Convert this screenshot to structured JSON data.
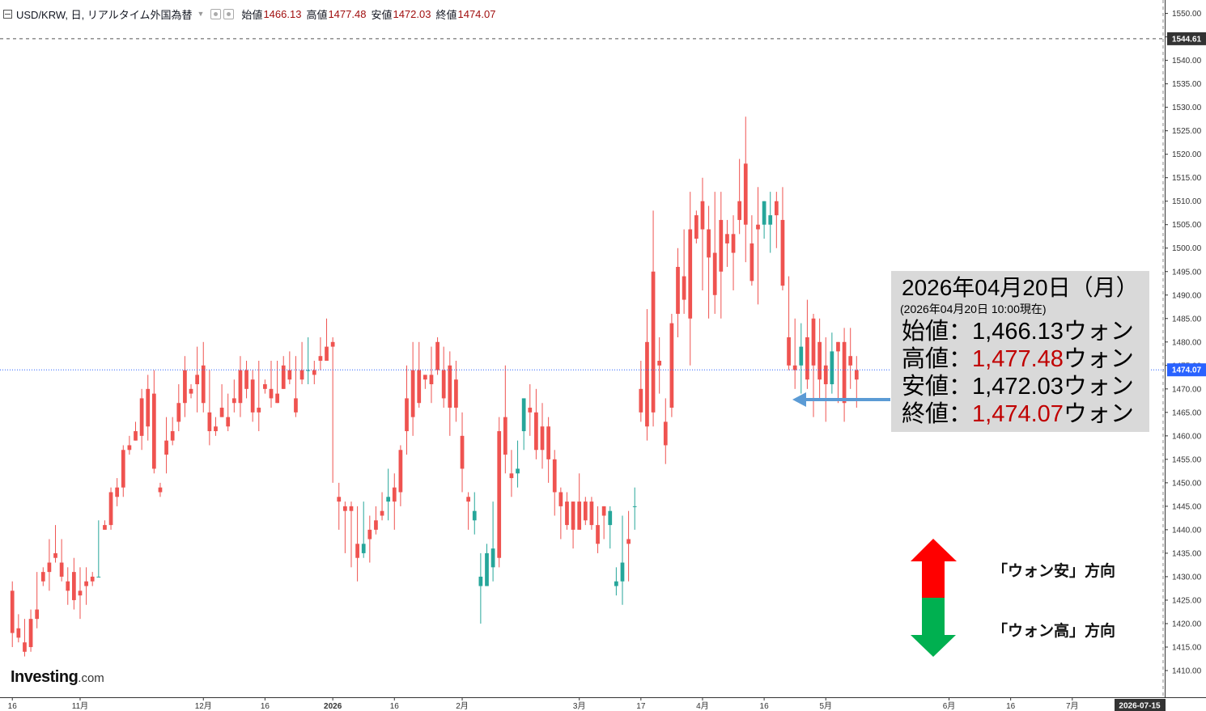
{
  "header": {
    "symbol": "USD/KRW, 日, リアルタイム外国為替",
    "open_label": "始値",
    "open_value": "1466.13",
    "high_label": "高値",
    "high_value": "1477.48",
    "low_label": "安値",
    "low_value": "1472.03",
    "close_label": "終値",
    "close_value": "1474.07"
  },
  "logo": {
    "brand": "Investing",
    "suffix": ".com"
  },
  "infobox": {
    "date": "2026年04月20日（月）",
    "as_of": "(2026年04月20日 10:00現在)",
    "rows": [
      {
        "label": "始値：",
        "value": "1,466.13",
        "unit": "ウォン",
        "highlight": false
      },
      {
        "label": "高値：",
        "value": "1,477.48",
        "unit": "ウォン",
        "highlight": true
      },
      {
        "label": "安値：",
        "value": "1,472.03",
        "unit": "ウォン",
        "highlight": false
      },
      {
        "label": "終値：",
        "value": "1,474.07",
        "unit": "ウォン",
        "highlight": true
      }
    ]
  },
  "legend_arrows": {
    "up_label": "「ウォン安」方向",
    "down_label": "「ウォン高」方向",
    "up_color": "#ff0000",
    "down_color": "#00b050"
  },
  "colors": {
    "up": "#26a69a",
    "down": "#ef5350",
    "accent": "#2962ff",
    "highlight_text": "#c00000"
  },
  "chart_data": {
    "type": "candlestick",
    "y_axis": {
      "min": 1405,
      "max": 1552,
      "step": 5,
      "position": "right",
      "ticks": [
        "1410.00",
        "1415.00",
        "1420.00",
        "1425.00",
        "1430.00",
        "1435.00",
        "1440.00",
        "1445.00",
        "1450.00",
        "1455.00",
        "1460.00",
        "1465.00",
        "1470.00",
        "1475.00",
        "1480.00",
        "1485.00",
        "1490.00",
        "1495.00",
        "1500.00",
        "1505.00",
        "1510.00",
        "1515.00",
        "1520.00",
        "1525.00",
        "1530.00",
        "1535.00",
        "1540.00",
        "1545.00",
        "1550.00"
      ]
    },
    "x_axis": {
      "slot_range": [
        -2,
        187
      ],
      "labels": [
        {
          "slot": 0,
          "text": "16"
        },
        {
          "slot": 11,
          "text": "11月"
        },
        {
          "slot": 31,
          "text": "12月"
        },
        {
          "slot": 41,
          "text": "16"
        },
        {
          "slot": 52,
          "text": "2026"
        },
        {
          "slot": 62,
          "text": "16"
        },
        {
          "slot": 73,
          "text": "2月"
        },
        {
          "slot": 92,
          "text": "3月"
        },
        {
          "slot": 102,
          "text": "17"
        },
        {
          "slot": 112,
          "text": "4月"
        },
        {
          "slot": 122,
          "text": "16"
        },
        {
          "slot": 132,
          "text": "5月"
        },
        {
          "slot": 152,
          "text": "6月"
        },
        {
          "slot": 162,
          "text": "16"
        },
        {
          "slot": 172,
          "text": "7月"
        }
      ],
      "badge": "2026-07-15"
    },
    "current_price": 1474.07,
    "current_price_label": "1474.07",
    "max_price_label": "1544.61",
    "max_price": 1544.61,
    "candles": [
      [
        1427,
        1429,
        1418,
        1415
      ],
      [
        1419,
        1422,
        1417,
        1416
      ],
      [
        1416,
        1421,
        1414,
        1413
      ],
      [
        1421,
        1423,
        1415,
        1414
      ],
      [
        1423,
        1431,
        1421,
        1419
      ],
      [
        1431,
        1432,
        1429,
        1428
      ],
      [
        1433,
        1438,
        1431,
        1427
      ],
      [
        1435,
        1441,
        1434,
        1433
      ],
      [
        1433,
        1438,
        1430,
        1429
      ],
      [
        1429,
        1432,
        1427,
        1424
      ],
      [
        1431,
        1434,
        1425,
        1423
      ],
      [
        1427,
        1432,
        1426,
        1421
      ],
      [
        1429,
        1432,
        1428,
        1424
      ],
      [
        1430,
        1431,
        1429,
        1428
      ],
      [
        1430,
        1442,
        1430,
        1431
      ],
      [
        1441,
        1442,
        1440,
        1440
      ],
      [
        1448,
        1449,
        1441,
        1440
      ],
      [
        1449,
        1451,
        1447,
        1445
      ],
      [
        1457,
        1458,
        1449,
        1447
      ],
      [
        1458,
        1460,
        1457,
        1456
      ],
      [
        1461,
        1463,
        1459,
        1459
      ],
      [
        1468,
        1470,
        1460,
        1457
      ],
      [
        1470,
        1473,
        1462,
        1459
      ],
      [
        1469,
        1474,
        1453,
        1452
      ],
      [
        1449,
        1450,
        1448,
        1447
      ],
      [
        1459,
        1464,
        1456,
        1452
      ],
      [
        1461,
        1464,
        1459,
        1458
      ],
      [
        1467,
        1471,
        1463,
        1461
      ],
      [
        1474,
        1477,
        1467,
        1464
      ],
      [
        1470,
        1471,
        1469,
        1468
      ],
      [
        1473,
        1479,
        1471,
        1465
      ],
      [
        1475,
        1480,
        1467,
        1465
      ],
      [
        1465,
        1474,
        1461,
        1458
      ],
      [
        1462,
        1464,
        1461,
        1460
      ],
      [
        1466,
        1471,
        1464,
        1464
      ],
      [
        1464,
        1469,
        1462,
        1461
      ],
      [
        1468,
        1472,
        1467,
        1465
      ],
      [
        1474,
        1477,
        1467,
        1464
      ],
      [
        1474,
        1476,
        1470,
        1468
      ],
      [
        1472,
        1474,
        1465,
        1463
      ],
      [
        1466,
        1476,
        1465,
        1461
      ],
      [
        1471,
        1472,
        1470,
        1469
      ],
      [
        1470,
        1476,
        1468,
        1466
      ],
      [
        1469,
        1476,
        1467,
        1467
      ],
      [
        1475,
        1477,
        1470,
        1470
      ],
      [
        1474,
        1478,
        1472,
        1471
      ],
      [
        1468,
        1477,
        1465,
        1464
      ],
      [
        1474,
        1480,
        1472,
        1471
      ],
      [
        1474,
        1481,
        1474,
        1471
      ],
      [
        1474,
        1476,
        1473,
        1471
      ],
      [
        1477,
        1481,
        1476,
        1474
      ],
      [
        1479,
        1485,
        1476,
        1478
      ],
      [
        1480,
        1481,
        1479,
        1450
      ],
      [
        1447,
        1450,
        1446,
        1440
      ],
      [
        1445,
        1446,
        1444,
        1435
      ],
      [
        1445,
        1446,
        1444,
        1432
      ],
      [
        1437,
        1445,
        1434,
        1429
      ],
      [
        1435,
        1446,
        1437,
        1434
      ],
      [
        1440,
        1443,
        1438,
        1433
      ],
      [
        1442,
        1445,
        1440,
        1439
      ],
      [
        1444,
        1448,
        1443,
        1442
      ],
      [
        1446,
        1453,
        1447,
        1442
      ],
      [
        1449,
        1452,
        1446,
        1440
      ],
      [
        1457,
        1458,
        1448,
        1445
      ],
      [
        1468,
        1475,
        1461,
        1456
      ],
      [
        1474,
        1480,
        1464,
        1460
      ],
      [
        1474,
        1480,
        1467,
        1466
      ],
      [
        1473,
        1473,
        1472,
        1470
      ],
      [
        1473,
        1479,
        1471,
        1467
      ],
      [
        1480,
        1481,
        1474,
        1473
      ],
      [
        1474,
        1479,
        1468,
        1466
      ],
      [
        1475,
        1478,
        1466,
        1460
      ],
      [
        1472,
        1476,
        1466,
        1463
      ],
      [
        1460,
        1465,
        1453,
        1448
      ],
      [
        1447,
        1448,
        1446,
        1440
      ],
      [
        1442,
        1448,
        1444,
        1439
      ],
      [
        1428,
        1435,
        1430,
        1420
      ],
      [
        1428,
        1437,
        1435,
        1429
      ],
      [
        1432,
        1446,
        1436,
        1429
      ],
      [
        1461,
        1464,
        1434,
        1432
      ],
      [
        1464,
        1475,
        1456,
        1452
      ],
      [
        1452,
        1457,
        1451,
        1447
      ],
      [
        1452,
        1459,
        1453,
        1449
      ],
      [
        1461,
        1462,
        1468,
        1457
      ],
      [
        1466,
        1471,
        1465,
        1460
      ],
      [
        1465,
        1470,
        1457,
        1455
      ],
      [
        1462,
        1467,
        1457,
        1453
      ],
      [
        1462,
        1464,
        1455,
        1450
      ],
      [
        1455,
        1457,
        1448,
        1443
      ],
      [
        1448,
        1449,
        1445,
        1438
      ],
      [
        1446,
        1448,
        1441,
        1440
      ],
      [
        1446,
        1446,
        1440,
        1436
      ],
      [
        1446,
        1452,
        1440,
        1440
      ],
      [
        1446,
        1447,
        1442,
        1441
      ],
      [
        1446,
        1447,
        1441,
        1440
      ],
      [
        1441,
        1445,
        1437,
        1435
      ],
      [
        1445,
        1445,
        1443,
        1438
      ],
      [
        1441,
        1445,
        1444,
        1436
      ],
      [
        1428,
        1432,
        1429,
        1426
      ],
      [
        1429,
        1443,
        1433,
        1424
      ],
      [
        1438,
        1444,
        1437,
        1429
      ],
      [
        1445,
        1449,
        1445,
        1440
      ],
      [
        1470,
        1476,
        1465,
        1463
      ],
      [
        1480,
        1487,
        1462,
        1459
      ],
      [
        1495,
        1508,
        1465,
        1462
      ],
      [
        1476,
        1481,
        1475,
        1469
      ],
      [
        1463,
        1468,
        1458,
        1454
      ],
      [
        1484,
        1486,
        1466,
        1464
      ],
      [
        1496,
        1500,
        1486,
        1481
      ],
      [
        1494,
        1504,
        1489,
        1486
      ],
      [
        1504,
        1512,
        1485,
        1475
      ],
      [
        1507,
        1508,
        1502,
        1501
      ],
      [
        1510,
        1515,
        1504,
        1491
      ],
      [
        1504,
        1509,
        1498,
        1485
      ],
      [
        1499,
        1512,
        1490,
        1486
      ],
      [
        1506,
        1512,
        1495,
        1485
      ],
      [
        1503,
        1506,
        1501,
        1496
      ],
      [
        1503,
        1507,
        1499,
        1491
      ],
      [
        1510,
        1519,
        1506,
        1503
      ],
      [
        1518,
        1528,
        1505,
        1497
      ],
      [
        1501,
        1507,
        1493,
        1492
      ],
      [
        1505,
        1513,
        1504,
        1488
      ],
      [
        1505,
        1507,
        1510,
        1502
      ],
      [
        1505,
        1512,
        1507,
        1499
      ],
      [
        1510,
        1512,
        1507,
        1500
      ],
      [
        1506,
        1513,
        1492,
        1491
      ],
      [
        1481,
        1494,
        1475,
        1474
      ],
      [
        1475,
        1485,
        1474,
        1470
      ],
      [
        1475,
        1484,
        1479,
        1469
      ],
      [
        1481,
        1489,
        1472,
        1470
      ],
      [
        1485,
        1486,
        1475,
        1464
      ],
      [
        1480,
        1485,
        1472,
        1468
      ],
      [
        1475,
        1481,
        1471,
        1463
      ],
      [
        1471,
        1482,
        1478,
        1469
      ],
      [
        1480,
        1478,
        1478,
        1467
      ],
      [
        1480,
        1483,
        1467,
        1463
      ],
      [
        1477,
        1483,
        1475,
        1470
      ],
      [
        1474,
        1477,
        1472,
        1466
      ]
    ]
  }
}
